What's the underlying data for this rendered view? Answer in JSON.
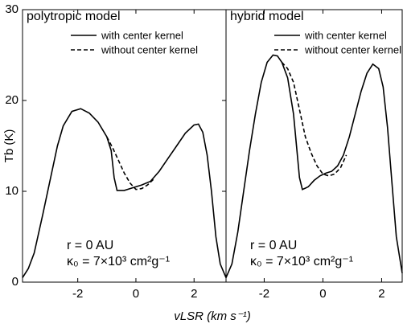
{
  "chart_data": [
    {
      "type": "line",
      "title": "polytropic model",
      "ylabel": "Tb (K)",
      "xlabel": "vLSR (km s⁻¹)",
      "annotations": [
        "r = 0 AU",
        "κ₀ = 7×10³ cm²g⁻¹"
      ],
      "xlim": [
        -3.9,
        3.1
      ],
      "xticks": [
        -2,
        0,
        2
      ],
      "ylim": [
        0,
        30
      ],
      "yticks": [
        0,
        10,
        20,
        30
      ],
      "series": [
        {
          "name": "with center kernel",
          "color": "#000000",
          "dash": "solid",
          "x": [
            -3.9,
            -3.7,
            -3.5,
            -3.2,
            -3.0,
            -2.7,
            -2.5,
            -2.2,
            -1.9,
            -1.6,
            -1.3,
            -1.0,
            -0.85,
            -0.75,
            -0.65,
            -0.4,
            -0.1,
            0.2,
            0.5,
            0.8,
            1.1,
            1.4,
            1.7,
            2.0,
            2.15,
            2.3,
            2.45,
            2.6,
            2.75,
            2.9,
            3.1
          ],
          "values": [
            0.5,
            1.5,
            3.2,
            7.5,
            10.5,
            15.0,
            17.2,
            18.8,
            19.1,
            18.6,
            17.6,
            16.0,
            14.5,
            11.5,
            10.1,
            10.1,
            10.4,
            10.7,
            11.1,
            12.2,
            13.6,
            15.0,
            16.4,
            17.3,
            17.4,
            16.5,
            14.0,
            10.0,
            5.0,
            2.0,
            0.5
          ]
        },
        {
          "name": "without center kernel",
          "color": "#000000",
          "dash": "dashed",
          "x": [
            -1.0,
            -0.8,
            -0.6,
            -0.4,
            -0.2,
            0.0,
            0.2,
            0.4,
            0.6
          ],
          "values": [
            16.0,
            14.8,
            13.4,
            12.0,
            10.9,
            10.2,
            10.3,
            10.7,
            11.3
          ]
        }
      ]
    },
    {
      "type": "line",
      "title": "hybrid model",
      "annotations": [
        "r = 0 AU",
        "κ₀ = 7×10³ cm²g⁻¹"
      ],
      "xlim": [
        -3.3,
        2.7
      ],
      "xticks": [
        -2,
        0,
        2
      ],
      "ylim": [
        0,
        30
      ],
      "series": [
        {
          "name": "with center kernel",
          "color": "#000000",
          "dash": "solid",
          "x": [
            -3.3,
            -3.1,
            -2.9,
            -2.7,
            -2.5,
            -2.3,
            -2.1,
            -1.9,
            -1.7,
            -1.55,
            -1.4,
            -1.2,
            -1.0,
            -0.9,
            -0.8,
            -0.7,
            -0.5,
            -0.3,
            -0.1,
            0.1,
            0.3,
            0.5,
            0.7,
            0.9,
            1.1,
            1.3,
            1.5,
            1.7,
            1.9,
            2.05,
            2.2,
            2.35,
            2.5,
            2.7
          ],
          "values": [
            0.5,
            2.0,
            5.5,
            10.0,
            14.5,
            18.5,
            22.0,
            24.2,
            25.0,
            24.9,
            24.2,
            22.5,
            18.5,
            15.0,
            11.5,
            10.2,
            10.5,
            11.2,
            11.7,
            12.0,
            12.2,
            12.8,
            14.0,
            16.0,
            18.5,
            21.0,
            23.0,
            24.0,
            23.5,
            21.5,
            17.0,
            11.0,
            5.0,
            1.0
          ]
        },
        {
          "name": "without center kernel",
          "color": "#000000",
          "dash": "dashed",
          "x": [
            -1.4,
            -1.2,
            -1.0,
            -0.8,
            -0.6,
            -0.4,
            -0.2,
            0.0,
            0.2,
            0.4,
            0.6,
            0.8
          ],
          "values": [
            24.2,
            23.5,
            22.0,
            19.0,
            16.0,
            14.2,
            12.8,
            11.9,
            11.7,
            11.9,
            12.6,
            14.0
          ]
        }
      ]
    }
  ]
}
